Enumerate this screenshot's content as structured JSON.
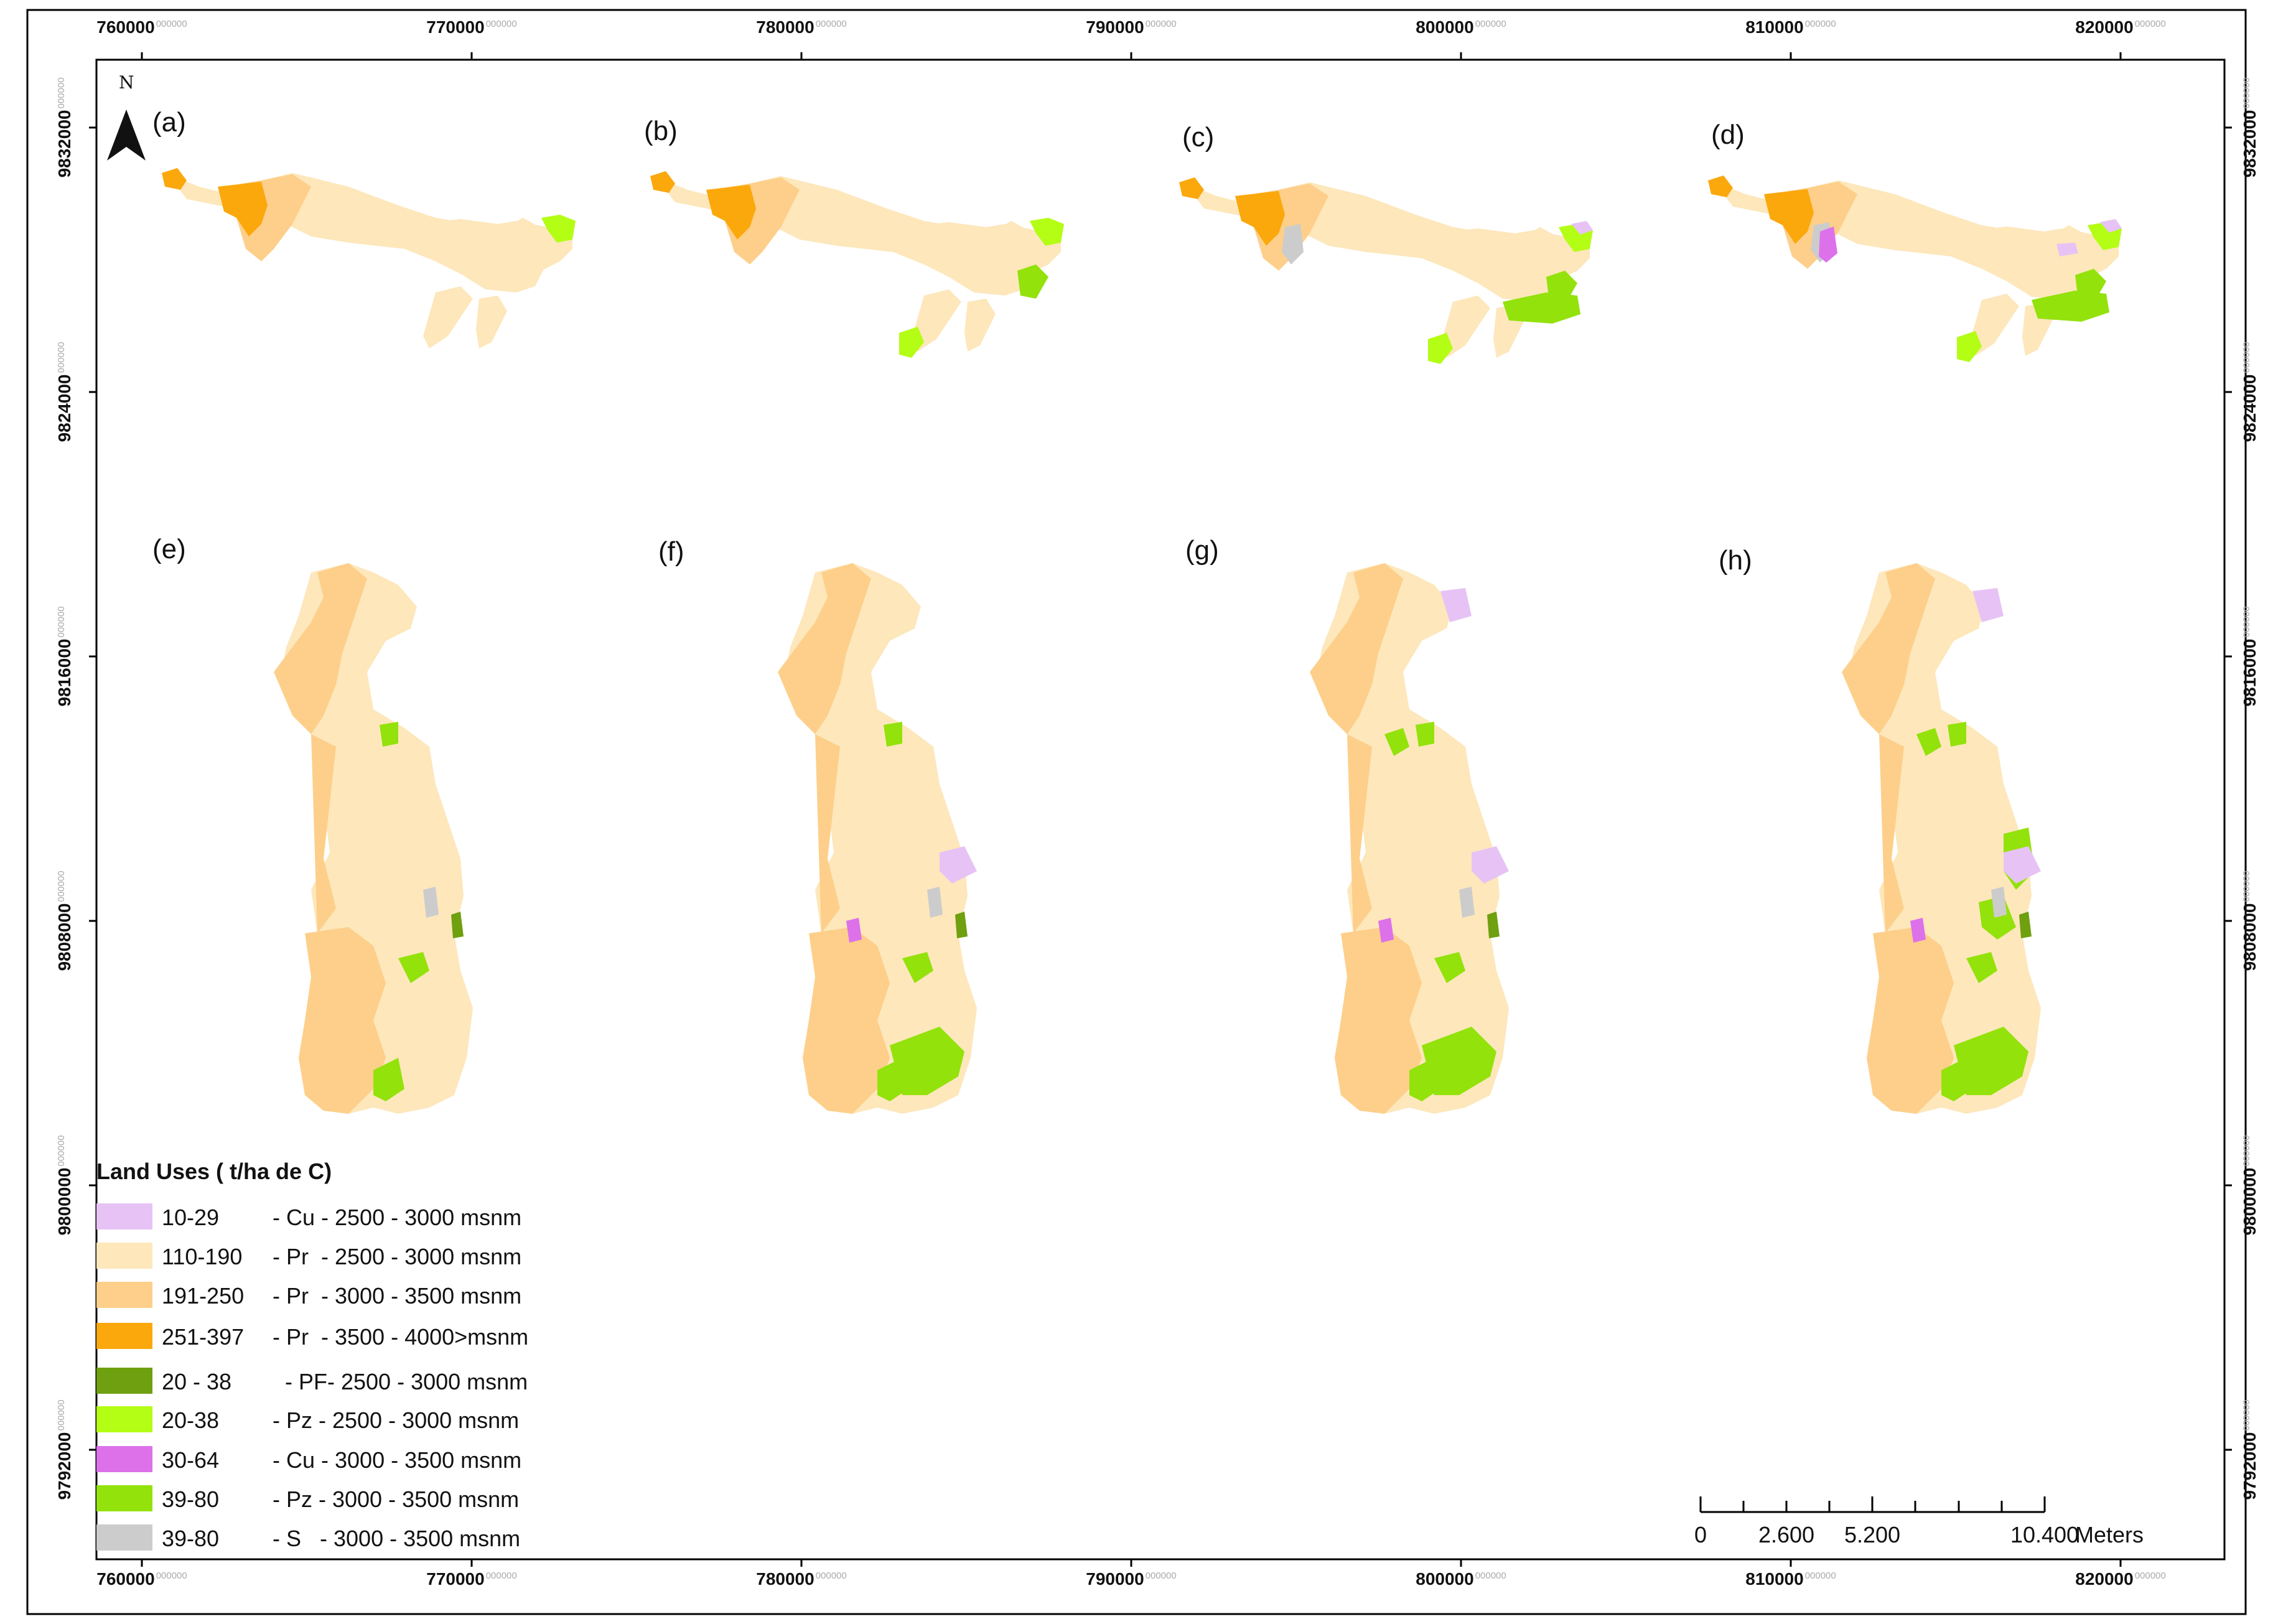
{
  "map": {
    "north_label": "N",
    "x_ticks": [
      {
        "value": "760000",
        "suffix": "000000"
      },
      {
        "value": "770000",
        "suffix": "000000"
      },
      {
        "value": "780000",
        "suffix": "000000"
      },
      {
        "value": "790000",
        "suffix": "000000"
      },
      {
        "value": "800000",
        "suffix": "000000"
      },
      {
        "value": "810000",
        "suffix": "000000"
      },
      {
        "value": "820000",
        "suffix": "000000"
      }
    ],
    "y_ticks": [
      {
        "value": "9832000",
        "suffix": "000000"
      },
      {
        "value": "9824000",
        "suffix": "000000"
      },
      {
        "value": "9816000",
        "suffix": "000000"
      },
      {
        "value": "9808000",
        "suffix": "000000"
      },
      {
        "value": "9800000",
        "suffix": "000000"
      },
      {
        "value": "9792000",
        "suffix": "000000"
      }
    ],
    "panels": [
      "(a)",
      "(b)",
      "(c)",
      "(d)",
      "(e)",
      "(f)",
      "(g)",
      "(h)"
    ]
  },
  "legend": {
    "title": "Land Uses ( t/ha de C)",
    "items": [
      {
        "range": "10-29",
        "desc": "- Cu - 2500 - 3000 msnm",
        "color": "#e7c3f5"
      },
      {
        "range": "110-190",
        "desc": "- Pr  - 2500 - 3000 msnm",
        "color": "#fde7bb"
      },
      {
        "range": "191-250",
        "desc": "- Pr  - 3000 - 3500 msnm",
        "color": "#fdcf8a"
      },
      {
        "range": "251-397",
        "desc": "- Pr  - 3500 - 4000>msnm",
        "color": "#fba80d"
      },
      {
        "range": "20 - 38",
        "desc": "  - PF- 2500 - 3000 msnm",
        "color": "#6fa00f"
      },
      {
        "range": "20-38",
        "desc": "- Pz - 2500 - 3000 msnm",
        "color": "#b4fd15"
      },
      {
        "range": "30-64",
        "desc": "- Cu - 3000 - 3500 msnm",
        "color": "#dd71ea"
      },
      {
        "range": "39-80",
        "desc": "- Pz - 3000 - 3500 msnm",
        "color": "#93e20b"
      },
      {
        "range": "39-80",
        "desc": "- S   - 3000 - 3500 msnm",
        "color": "#cccccc"
      }
    ]
  },
  "scale_bar": {
    "labels": [
      "0",
      "2.600",
      "5.200",
      "10.400"
    ],
    "unit": "Meters"
  }
}
